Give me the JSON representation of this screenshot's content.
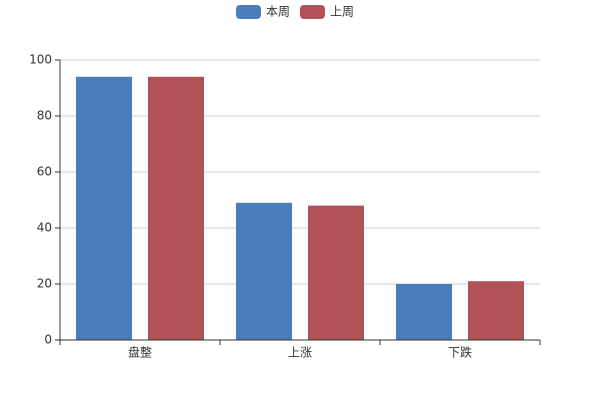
{
  "chart_data": {
    "type": "bar",
    "categories": [
      "盘整",
      "上涨",
      "下跌"
    ],
    "series": [
      {
        "name": "本周",
        "color": "#4a7ebb",
        "values": [
          94,
          49,
          20
        ]
      },
      {
        "name": "上周",
        "color": "#b05257",
        "values": [
          94,
          48,
          21
        ]
      }
    ],
    "ylim": [
      0,
      100
    ],
    "yticks": [
      0,
      20,
      40,
      60,
      80,
      100
    ],
    "grid": true,
    "legend": "top"
  }
}
